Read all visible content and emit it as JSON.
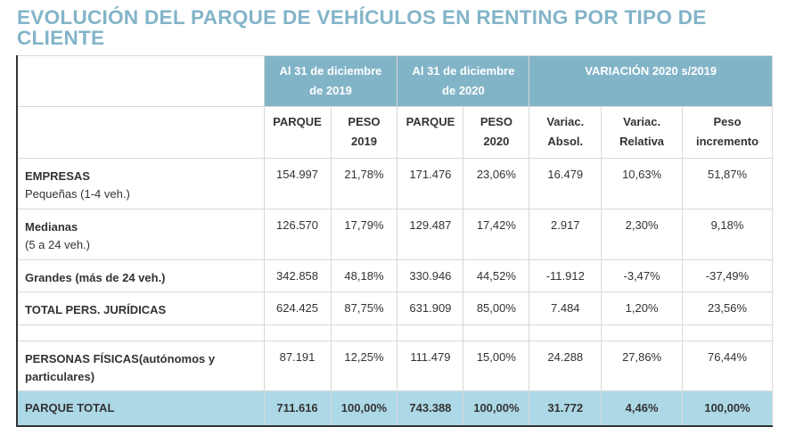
{
  "title": "EVOLUCIÓN DEL PARQUE DE VEHÍCULOS EN RENTING POR TIPO DE CLIENTE",
  "header": {
    "g1": "Al 31 de diciembre de 2019",
    "g2": "Al 31 de diciembre de  2020",
    "g3": "VARIACIÓN 2020 s/2019",
    "cols": [
      "PARQUE",
      "PESO 2019",
      "PARQUE",
      "PESO 2020",
      "Variac. Absol.",
      "Variac. Relativa",
      "Peso incremento"
    ]
  },
  "rows": [
    {
      "l1": "EMPRESAS",
      "l2": "Pequeñas (1-4 veh.)",
      "v": [
        "154.997",
        "21,78%",
        "171.476",
        "23,06%",
        "16.479",
        "10,63%",
        "51,87%"
      ]
    },
    {
      "l1": "Medianas",
      "l2": "(5 a 24 veh.)",
      "v": [
        "126.570",
        "17,79%",
        "129.487",
        "17,42%",
        "2.917",
        "2,30%",
        "9,18%"
      ]
    },
    {
      "l1": "Grandes (más de 24 veh.)",
      "v": [
        "342.858",
        "48,18%",
        "330.946",
        "44,52%",
        "-11.912",
        "-3,47%",
        "-37,49%"
      ]
    },
    {
      "l1": "TOTAL PERS. JURÍDICAS",
      "v": [
        "624.425",
        "87,75%",
        "631.909",
        "85,00%",
        "7.484",
        "1,20%",
        "23,56%"
      ]
    },
    {
      "l1": "PERSONAS FÍSICAS(autónomos y particulares)",
      "v": [
        "87.191",
        "12,25%",
        "111.479",
        "15,00%",
        "24.288",
        "27,86%",
        "76,44%"
      ]
    }
  ],
  "total": {
    "l1": "PARQUE TOTAL",
    "v": [
      "711.616",
      "100,00%",
      "743.388",
      "100,00%",
      "31.772",
      "4,46%",
      "100,00%"
    ]
  }
}
